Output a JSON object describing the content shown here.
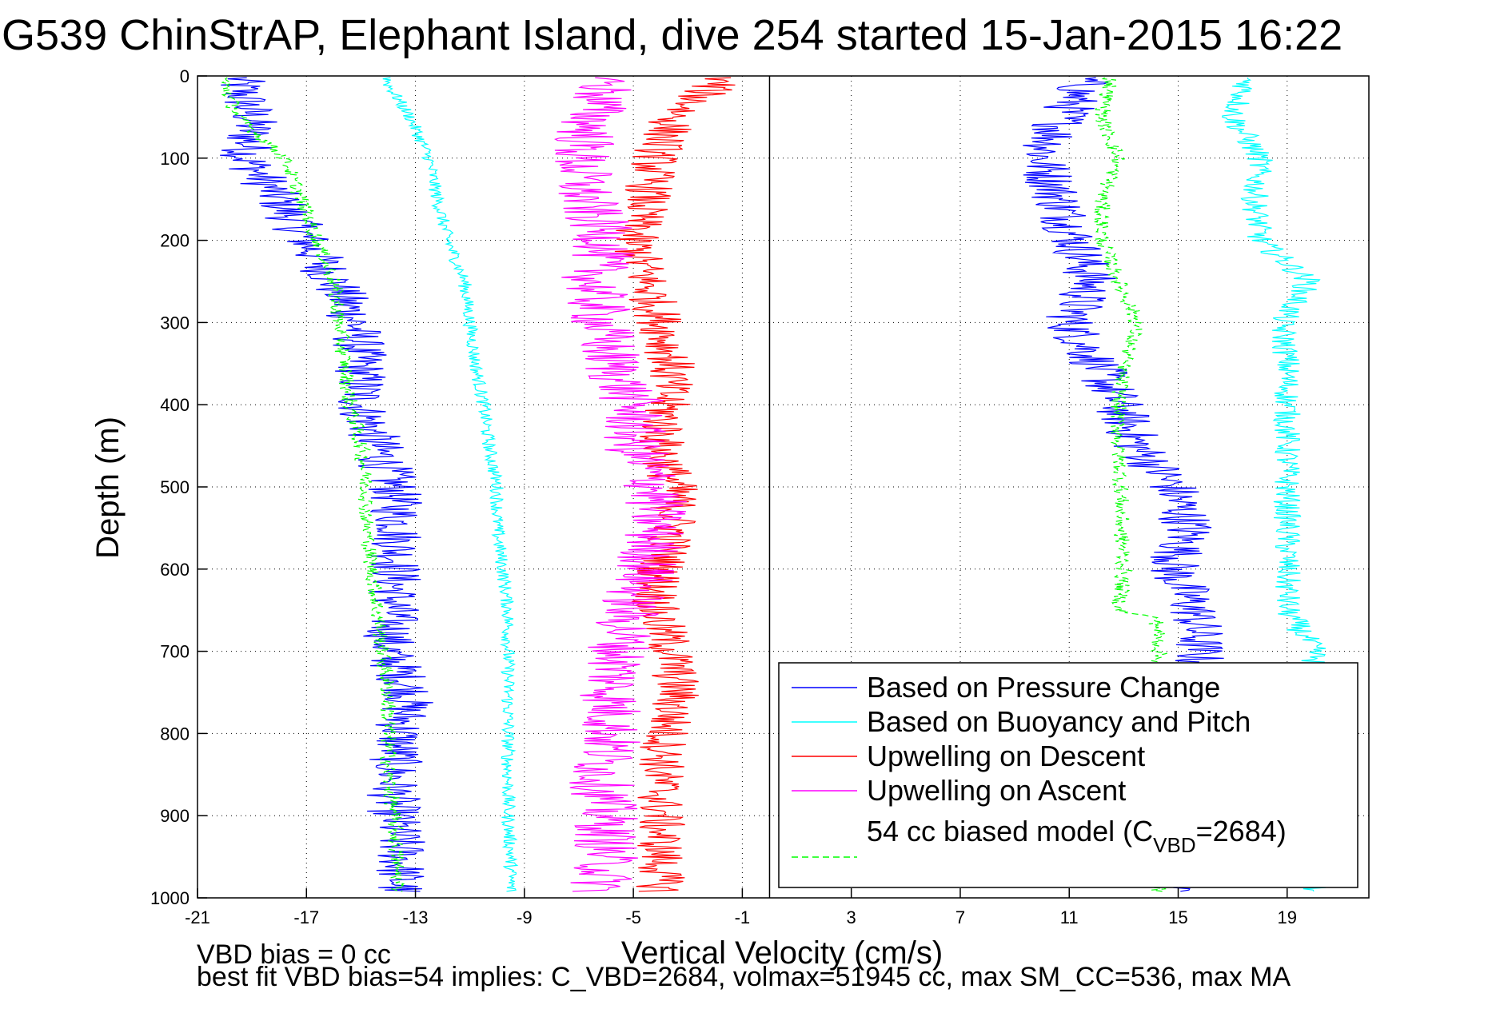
{
  "chart_data": {
    "type": "line",
    "title": "G539 ChinStrAP, Elephant Island, dive 254 started 15-Jan-2015 16:22",
    "xlabel": "Vertical Velocity (cm/s)",
    "ylabel": "Depth (m)",
    "xlim": [
      -21,
      22
    ],
    "ylim": [
      0,
      1000
    ],
    "y_reversed": true,
    "grid": true,
    "xticks": [
      -21,
      -17,
      -13,
      -9,
      -5,
      -1,
      3,
      7,
      11,
      15,
      19
    ],
    "yticks": [
      0,
      100,
      200,
      300,
      400,
      500,
      600,
      700,
      800,
      900,
      1000
    ],
    "zero_line_x": 0,
    "legend_position": "bottom-right",
    "legend": [
      {
        "label": "Based on Pressure Change",
        "color": "#0000ff",
        "dash": false
      },
      {
        "label": "Based on Buoyancy and Pitch",
        "color": "#00ffff",
        "dash": false
      },
      {
        "label": "Upwelling on Descent",
        "color": "#ff0000",
        "dash": false
      },
      {
        "label": "Upwelling on Ascent",
        "color": "#ff00ff",
        "dash": false
      },
      {
        "label_main": "54 cc biased model (C",
        "label_sub": "VBD",
        "label_end": "=2684)",
        "color": "#00ff00",
        "dash": true
      }
    ],
    "series": [
      {
        "name": "Based on Pressure Change (descent)",
        "color": "#0000ff",
        "noise": 1.0,
        "profile": [
          [
            10,
            -19.5
          ],
          [
            50,
            -19
          ],
          [
            100,
            -19.2
          ],
          [
            150,
            -18
          ],
          [
            200,
            -17
          ],
          [
            250,
            -16
          ],
          [
            300,
            -15.2
          ],
          [
            350,
            -15
          ],
          [
            400,
            -15
          ],
          [
            450,
            -14.4
          ],
          [
            500,
            -13.8
          ],
          [
            550,
            -13.6
          ],
          [
            600,
            -13.7
          ],
          [
            650,
            -13.8
          ],
          [
            700,
            -14
          ],
          [
            750,
            -13.2
          ],
          [
            800,
            -13.6
          ],
          [
            850,
            -13.8
          ],
          [
            900,
            -13.8
          ],
          [
            950,
            -13.5
          ],
          [
            990,
            -13.6
          ]
        ]
      },
      {
        "name": "Based on Pressure Change (ascent)",
        "color": "#0000ff",
        "noise": 1.0,
        "profile": [
          [
            10,
            11.5
          ],
          [
            50,
            10.8
          ],
          [
            100,
            10
          ],
          [
            150,
            10.6
          ],
          [
            200,
            11.2
          ],
          [
            250,
            11.8
          ],
          [
            300,
            11
          ],
          [
            350,
            12
          ],
          [
            400,
            12.8
          ],
          [
            450,
            13.5
          ],
          [
            500,
            14.8
          ],
          [
            550,
            15.4
          ],
          [
            600,
            14.8
          ],
          [
            650,
            15.6
          ],
          [
            700,
            15.8
          ],
          [
            750,
            15.5
          ],
          [
            990,
            15.5
          ]
        ]
      },
      {
        "name": "Based on Buoyancy and Pitch (descent)",
        "color": "#00ffff",
        "noise": 0.25,
        "profile": [
          [
            10,
            -14
          ],
          [
            50,
            -13.2
          ],
          [
            100,
            -12.5
          ],
          [
            150,
            -12.2
          ],
          [
            200,
            -11.8
          ],
          [
            250,
            -11.2
          ],
          [
            300,
            -11
          ],
          [
            350,
            -10.8
          ],
          [
            400,
            -10.5
          ],
          [
            450,
            -10.3
          ],
          [
            500,
            -10
          ],
          [
            550,
            -10
          ],
          [
            600,
            -9.8
          ],
          [
            650,
            -9.6
          ],
          [
            700,
            -9.6
          ],
          [
            750,
            -9.6
          ],
          [
            800,
            -9.6
          ],
          [
            850,
            -9.6
          ],
          [
            900,
            -9.6
          ],
          [
            950,
            -9.5
          ],
          [
            990,
            -9.5
          ]
        ]
      },
      {
        "name": "Based on Buoyancy and Pitch (ascent)",
        "color": "#00ffff",
        "noise": 0.5,
        "profile": [
          [
            10,
            17.5
          ],
          [
            50,
            17
          ],
          [
            100,
            18
          ],
          [
            150,
            17.8
          ],
          [
            200,
            18
          ],
          [
            250,
            19.8
          ],
          [
            300,
            18.8
          ],
          [
            350,
            19
          ],
          [
            400,
            19
          ],
          [
            450,
            19
          ],
          [
            500,
            19
          ],
          [
            550,
            19
          ],
          [
            600,
            19
          ],
          [
            650,
            19
          ],
          [
            700,
            20
          ],
          [
            750,
            20
          ],
          [
            990,
            20
          ]
        ]
      },
      {
        "name": "Upwelling on Descent",
        "color": "#ff0000",
        "noise": 0.9,
        "profile": [
          [
            10,
            -2
          ],
          [
            50,
            -3.5
          ],
          [
            100,
            -4.2
          ],
          [
            150,
            -4.5
          ],
          [
            200,
            -5
          ],
          [
            250,
            -4.5
          ],
          [
            300,
            -4
          ],
          [
            350,
            -3.6
          ],
          [
            400,
            -3.8
          ],
          [
            450,
            -4
          ],
          [
            500,
            -3.5
          ],
          [
            550,
            -3.5
          ],
          [
            600,
            -4
          ],
          [
            650,
            -4.2
          ],
          [
            700,
            -3.6
          ],
          [
            750,
            -3.4
          ],
          [
            800,
            -3.8
          ],
          [
            850,
            -4
          ],
          [
            900,
            -4
          ],
          [
            950,
            -4
          ],
          [
            990,
            -4
          ]
        ]
      },
      {
        "name": "Upwelling on Ascent",
        "color": "#ff00ff",
        "noise": 1.2,
        "profile": [
          [
            10,
            -6
          ],
          [
            50,
            -6.5
          ],
          [
            100,
            -7
          ],
          [
            150,
            -6.8
          ],
          [
            200,
            -6
          ],
          [
            250,
            -6.5
          ],
          [
            300,
            -6.2
          ],
          [
            350,
            -5.8
          ],
          [
            400,
            -5
          ],
          [
            450,
            -5
          ],
          [
            500,
            -4.2
          ],
          [
            550,
            -4.2
          ],
          [
            600,
            -4.5
          ],
          [
            650,
            -5.2
          ],
          [
            700,
            -5.5
          ],
          [
            750,
            -5.8
          ],
          [
            800,
            -5.8
          ],
          [
            850,
            -6.2
          ],
          [
            900,
            -6
          ],
          [
            950,
            -6
          ],
          [
            990,
            -6.2
          ]
        ]
      },
      {
        "name": "54 cc biased model (descent)",
        "color": "#00ff00",
        "noise": 0.3,
        "dash": true,
        "profile": [
          [
            10,
            -20
          ],
          [
            50,
            -19.5
          ],
          [
            100,
            -17.8
          ],
          [
            150,
            -17.2
          ],
          [
            200,
            -16.6
          ],
          [
            250,
            -16
          ],
          [
            300,
            -15.8
          ],
          [
            350,
            -15.6
          ],
          [
            400,
            -15.4
          ],
          [
            450,
            -15
          ],
          [
            500,
            -14.8
          ],
          [
            550,
            -14.8
          ],
          [
            600,
            -14.6
          ],
          [
            650,
            -14.4
          ],
          [
            700,
            -14.2
          ],
          [
            750,
            -14
          ],
          [
            800,
            -14
          ],
          [
            850,
            -14
          ],
          [
            900,
            -13.8
          ],
          [
            950,
            -13.7
          ],
          [
            990,
            -13.6
          ]
        ]
      },
      {
        "name": "54 cc biased model (ascent)",
        "color": "#00ff00",
        "noise": 0.3,
        "dash": true,
        "profile": [
          [
            10,
            12.5
          ],
          [
            50,
            12.2
          ],
          [
            100,
            12.8
          ],
          [
            150,
            12.2
          ],
          [
            200,
            12.2
          ],
          [
            250,
            12.8
          ],
          [
            300,
            13.5
          ],
          [
            350,
            13
          ],
          [
            400,
            12.8
          ],
          [
            450,
            12.8
          ],
          [
            500,
            12.9
          ],
          [
            550,
            12.9
          ],
          [
            600,
            13
          ],
          [
            650,
            12.8
          ],
          [
            660,
            14.2
          ],
          [
            700,
            14.3
          ],
          [
            990,
            14.3
          ]
        ]
      }
    ]
  },
  "annotations": {
    "vbd_bias": "VBD bias = 0 cc",
    "best_fit": "best fit VBD bias=54 implies: C_VBD=2684, volmax=51945 cc, max SM_CC=536, max MA"
  }
}
